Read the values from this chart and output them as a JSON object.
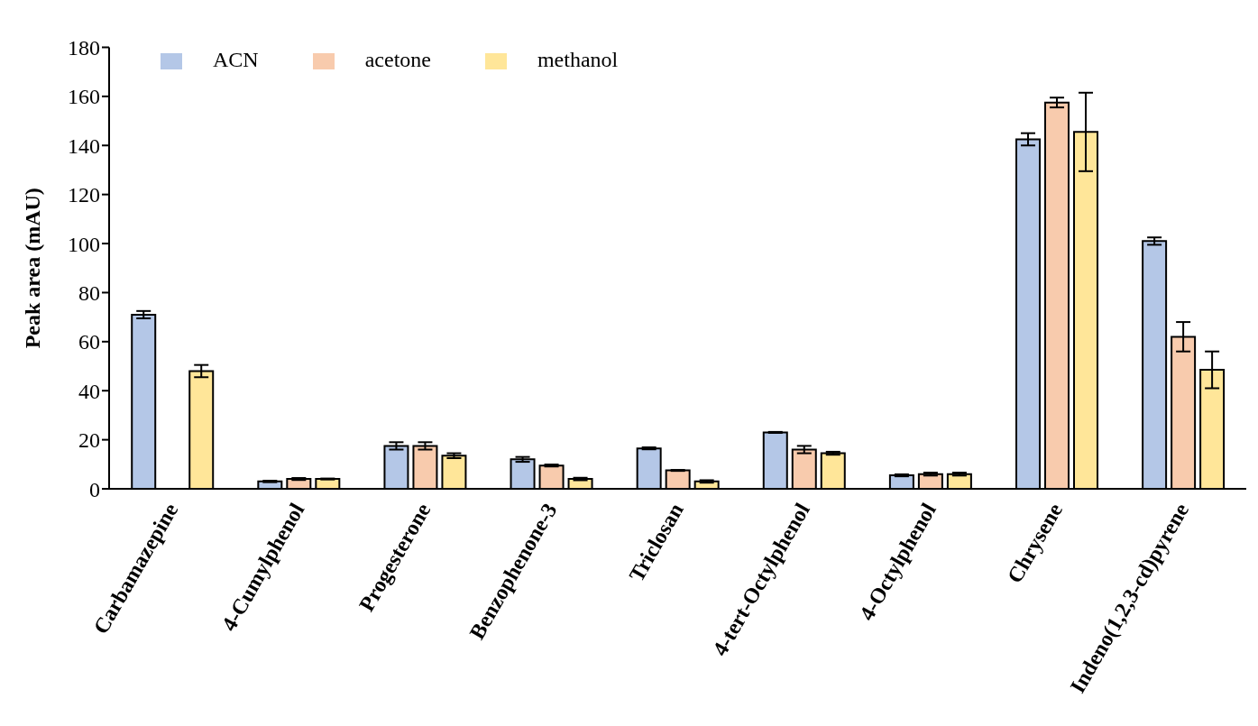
{
  "chart_data": {
    "type": "bar",
    "ylabel": "Peak area (mAU)",
    "categories": [
      "Carbamazepine",
      "4-Cumylphenol",
      "Progesterone",
      "Benzophenone-3",
      "Triclosan",
      "4-tert-Octylphenol",
      "4-Octylphenol",
      "Chrysene",
      "Indeno(1,2,3-cd)pyrene"
    ],
    "series": [
      {
        "name": "ACN",
        "color": "#b4c7e7",
        "values": [
          71,
          3,
          17.5,
          12,
          16.5,
          23,
          5.5,
          142.5,
          101
        ],
        "errors": [
          1.5,
          0.3,
          1.5,
          1,
          0.4,
          0.2,
          0.4,
          2.5,
          1.5
        ]
      },
      {
        "name": "acetone",
        "color": "#f8cbad",
        "values": [
          null,
          4,
          17.5,
          9.5,
          7.5,
          16,
          6,
          157.5,
          62
        ],
        "errors": [
          null,
          0.4,
          1.5,
          0.4,
          0.2,
          1.5,
          0.6,
          2,
          6
        ]
      },
      {
        "name": "methanol",
        "color": "#ffe699",
        "values": [
          48,
          4,
          13.5,
          4,
          3,
          14.5,
          6,
          145.5,
          48.5
        ],
        "errors": [
          2.5,
          0.2,
          1,
          0.5,
          0.5,
          0.6,
          0.6,
          16,
          7.5
        ]
      }
    ],
    "ylim": [
      0,
      180
    ],
    "yticks": [
      0,
      20,
      40,
      60,
      80,
      100,
      120,
      140,
      160,
      180
    ],
    "grid": false,
    "legend": "top left"
  }
}
